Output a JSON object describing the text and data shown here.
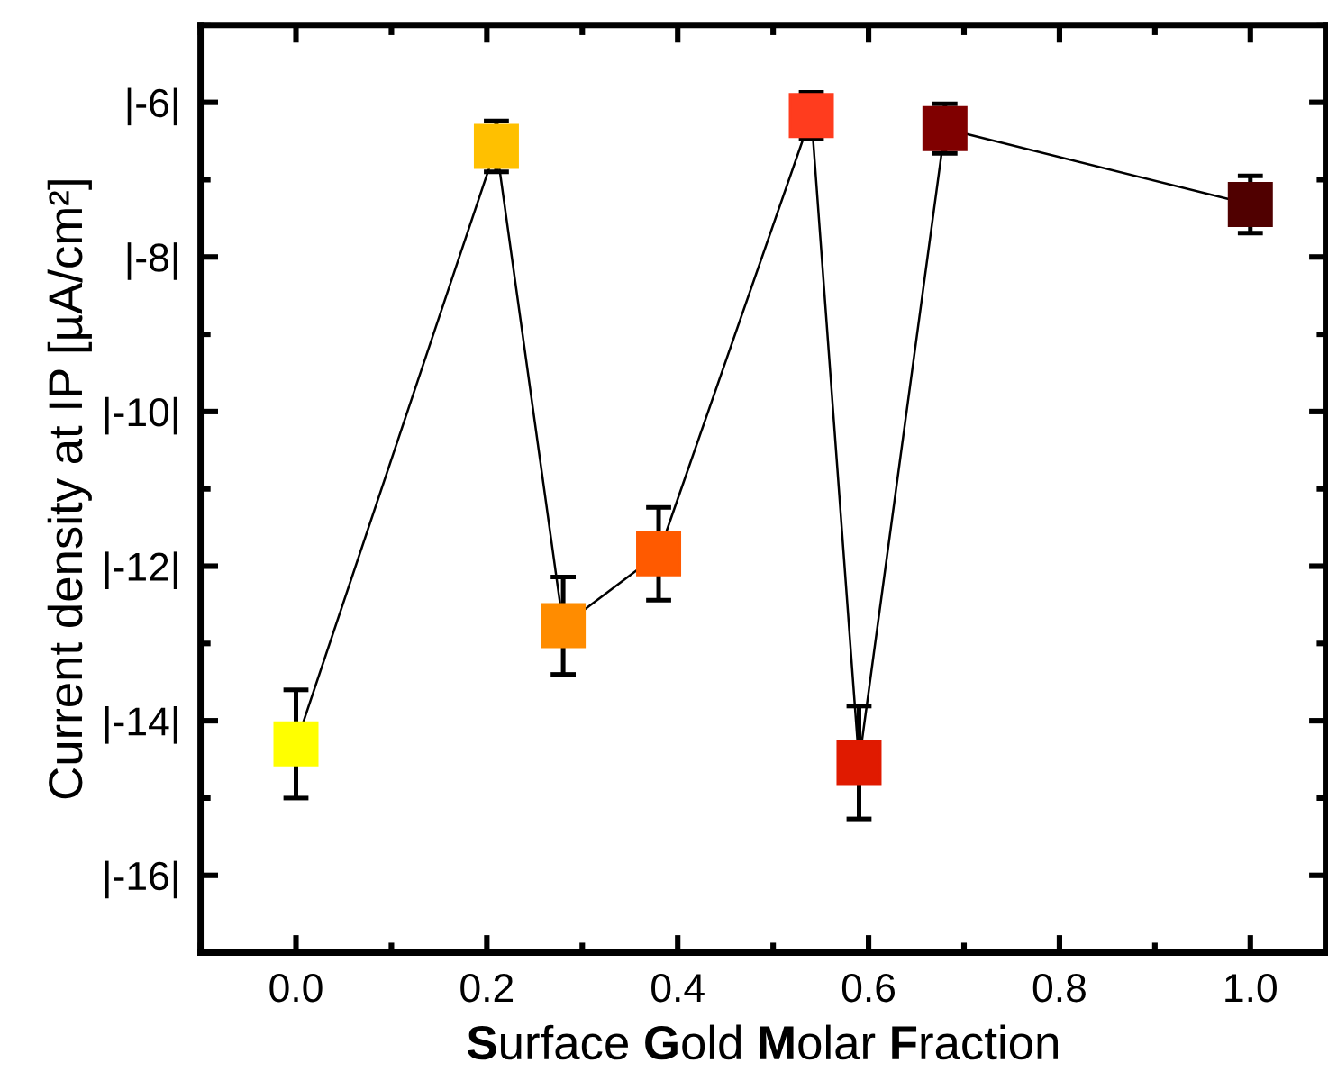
{
  "chart_data": {
    "type": "line",
    "xlabel": "Surface Gold Molar Fraction",
    "ylabel": "Current density at IP [µA/cm²]",
    "x": [
      0.0,
      0.21,
      0.28,
      0.38,
      0.54,
      0.59,
      0.68,
      1.0
    ],
    "series": [
      {
        "color": "#000000",
        "marker": "square",
        "colors": [
          "#ffff00",
          "#ffc000",
          "#ff8c00",
          "#ff5a00",
          "#ff3c1e",
          "#e01a00",
          "#800000",
          "#500000"
        ],
        "values": [
          -14.3,
          -6.57,
          -12.77,
          -11.84,
          -6.17,
          -14.54,
          -6.34,
          -7.32
        ],
        "errors": [
          0.7,
          0.33,
          0.63,
          0.6,
          0.3,
          0.73,
          0.32,
          0.37
        ]
      }
    ],
    "xlim": [
      -0.1,
      1.08
    ],
    "ylim": [
      -17,
      -5
    ],
    "xticks": [
      {
        "value": 0.0,
        "label": "0.0"
      },
      {
        "value": 0.2,
        "label": "0.2"
      },
      {
        "value": 0.4,
        "label": "0.4"
      },
      {
        "value": 0.6,
        "label": "0.6"
      },
      {
        "value": 0.8,
        "label": "0.8"
      },
      {
        "value": 1.0,
        "label": "1.0"
      }
    ],
    "yticks": [
      {
        "value": -16,
        "label": "|-16|"
      },
      {
        "value": -14,
        "label": "|-14|"
      },
      {
        "value": -12,
        "label": "|-12|"
      },
      {
        "value": -10,
        "label": "|-10|"
      },
      {
        "value": -8,
        "label": "|-8|"
      },
      {
        "value": -6,
        "label": "|-6|"
      }
    ],
    "grid": false,
    "legend": false,
    "line_style": "solid"
  }
}
